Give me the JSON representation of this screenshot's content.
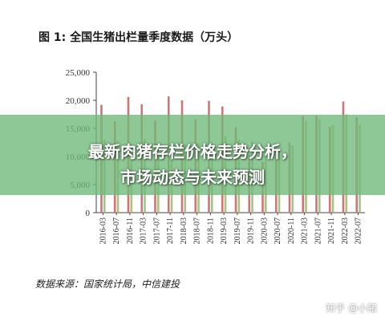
{
  "chart_data": {
    "type": "bar",
    "title": "图 1: 全国生猪出栏量季度数据（万头）",
    "categories": [
      "2016-03",
      "2016-07",
      "2016-11",
      "2017-03",
      "2017-07",
      "2017-11",
      "2018-03",
      "2018-07",
      "2018-11",
      "2019-03",
      "2019-07",
      "2019-11",
      "2020-03",
      "2020-07",
      "2020-11",
      "2021-03",
      "2021-07",
      "2021-11",
      "2022-03",
      "2022-07"
    ],
    "series": [
      {
        "values": [
          19200,
          16300,
          20600,
          19300,
          16400,
          20700,
          20000,
          16600,
          19900,
          18900,
          15200,
          10400,
          9000,
          11000,
          12500,
          17200,
          17300,
          15300,
          19800,
          17000
        ]
      },
      {
        "values": [
          13000,
          12800,
          11500,
          13200,
          12200,
          12000,
          12100,
          12400,
          11800,
          13600,
          13000,
          12700,
          10200,
          11400,
          11900,
          16400,
          16700,
          15600,
          17500,
          15700
        ]
      }
    ],
    "ylim": [
      0,
      25000
    ],
    "yticks": [
      "0",
      "5,000",
      "10,000",
      "15,000",
      "20,000",
      "25,000"
    ],
    "ytick_values": [
      0,
      5000,
      10000,
      15000,
      20000,
      25000
    ],
    "grid": false,
    "colors": [
      "#d07575",
      "#9ab870"
    ]
  },
  "source": "数据来源：国家统计局，中信建投",
  "banner": {
    "line1": "最新肉猪存栏价格走势分析，",
    "line2": "市场动态与未来预测",
    "color": "#6eb978"
  },
  "watermark": "知乎 @小猪"
}
